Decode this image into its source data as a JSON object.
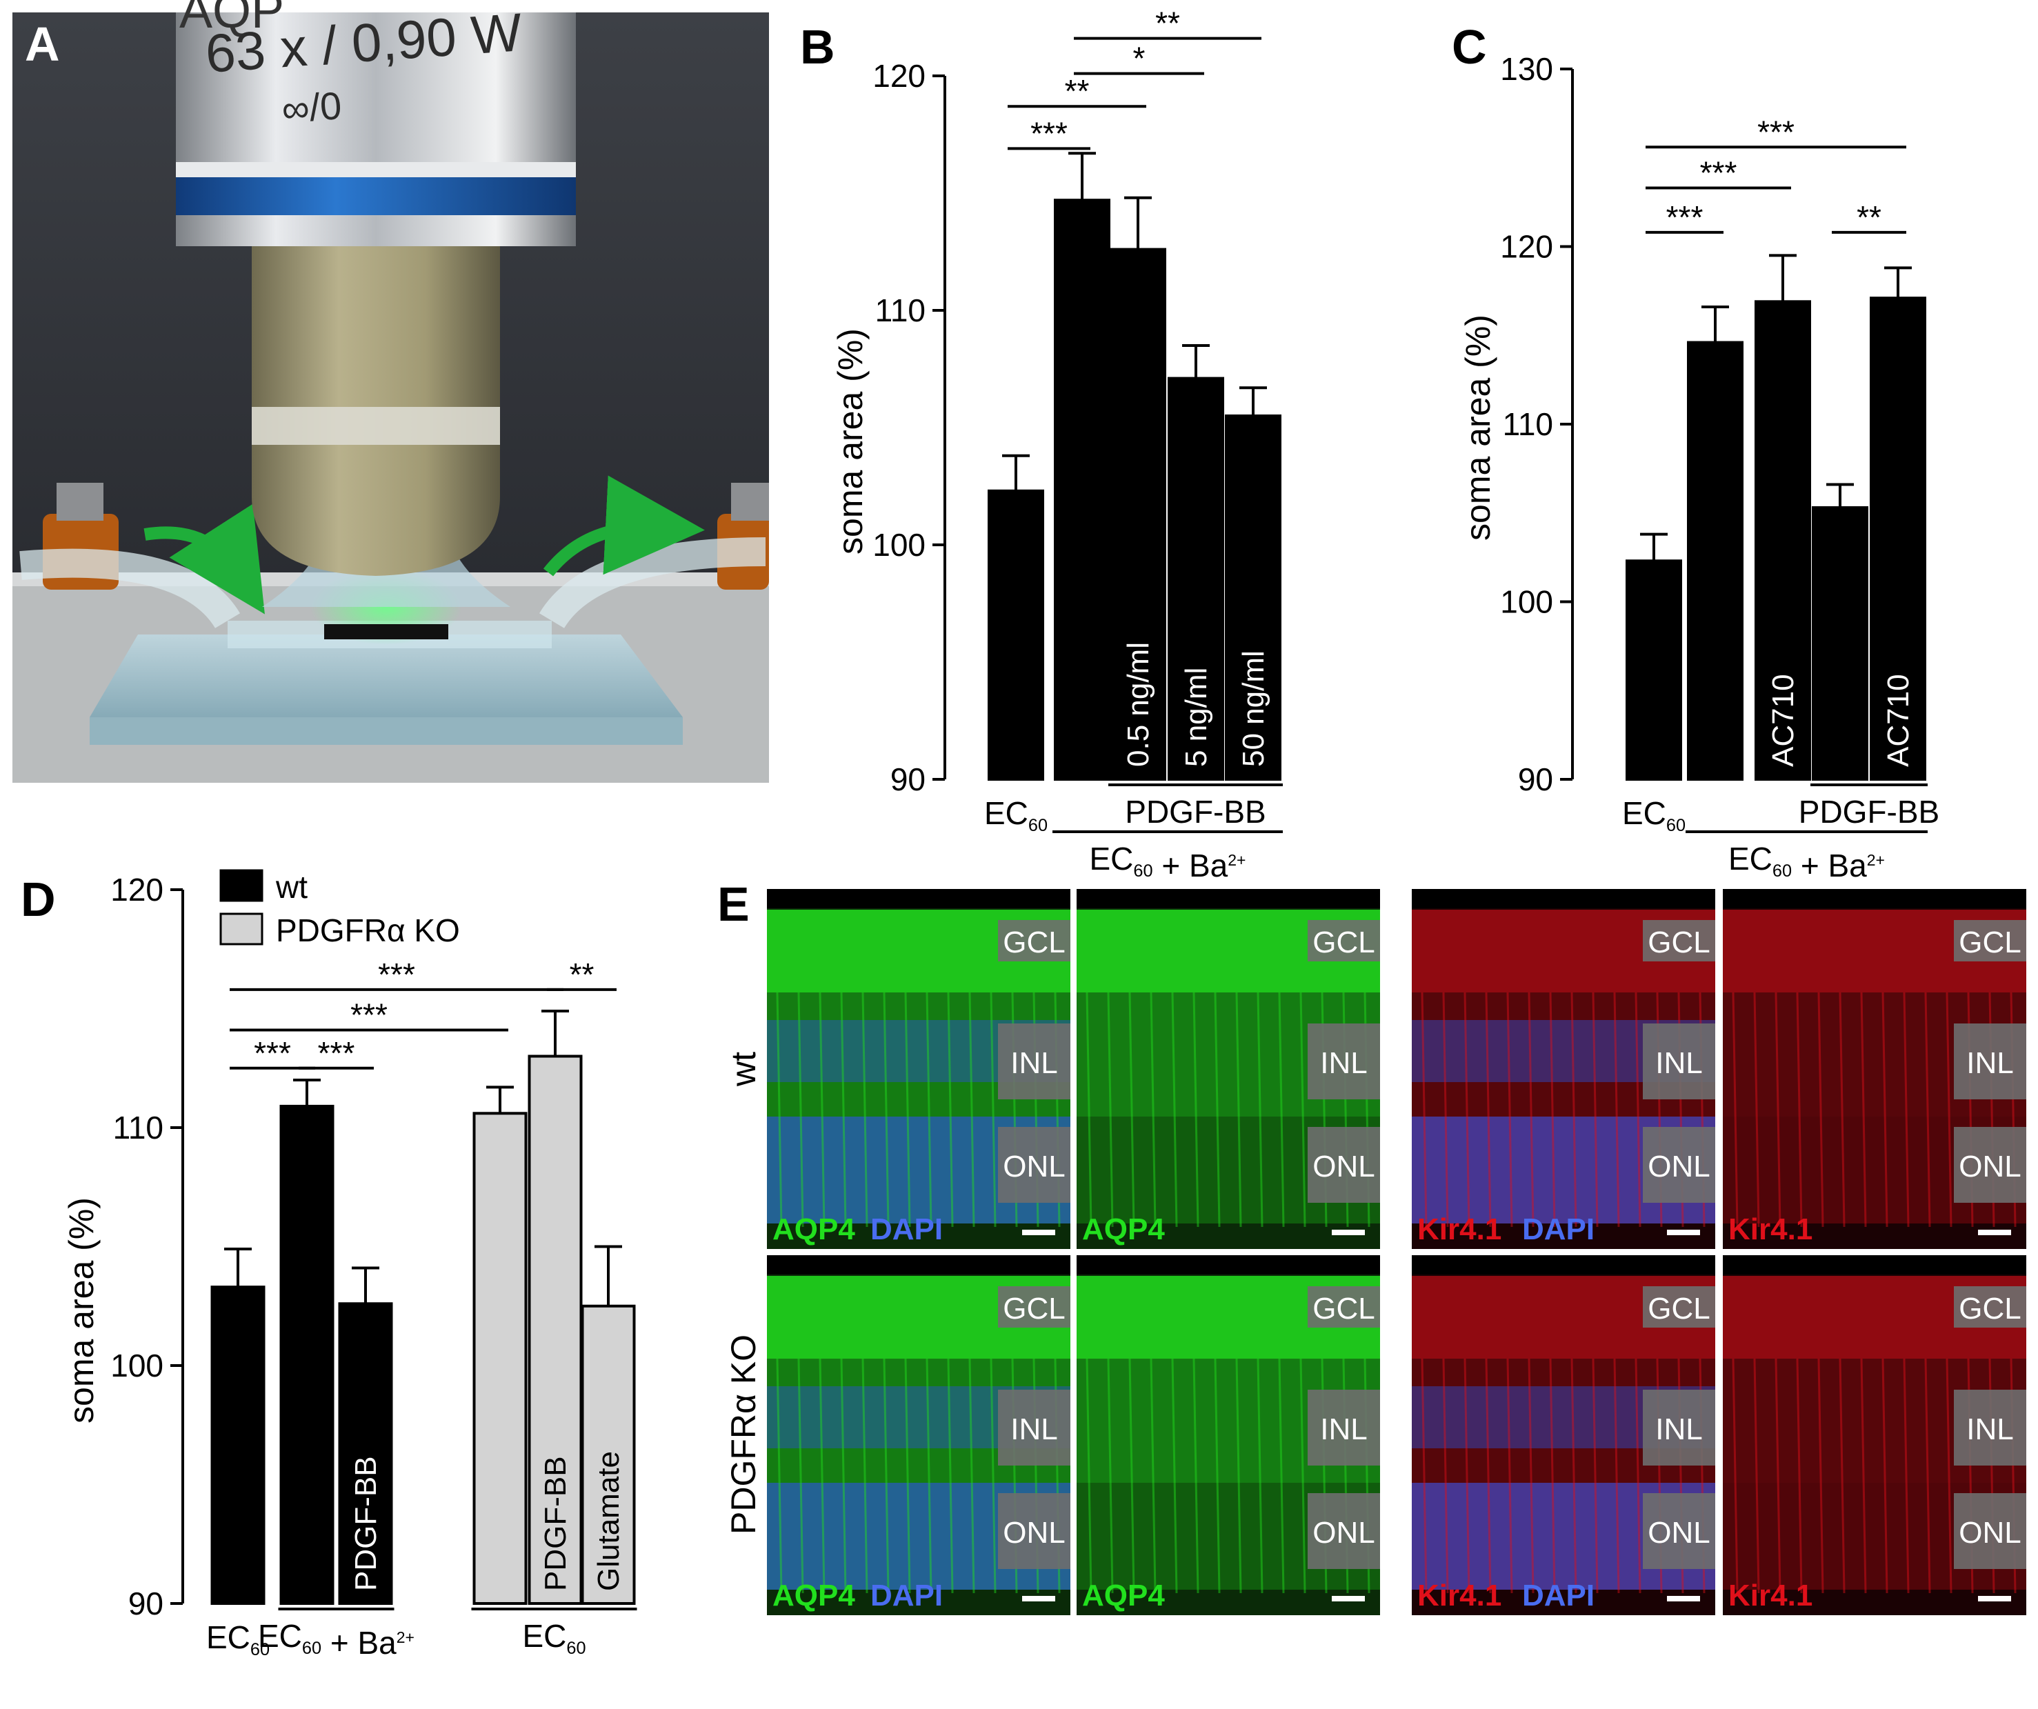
{
  "panels": {
    "A": {
      "letter": "A",
      "objective_line1": "63 x / 0,90 W",
      "objective_line2": "∞/0",
      "objective_top": "AQP",
      "colors": {
        "bg": "#2f3136",
        "metal": "#c9ccd0",
        "ring": "#1f64b5",
        "body": "#a39c76",
        "water": "#9fc6d6",
        "arrow": "#1fae3a",
        "clamp": "#b45a12"
      }
    },
    "B": {
      "letter": "B",
      "chart_data": {
        "type": "bar",
        "ylabel": "soma area (%)",
        "ylim": [
          90,
          120
        ],
        "yticks": [
          90,
          100,
          110,
          120
        ],
        "categories": [
          "EC60",
          "EC60 + Ba2+",
          "0.5 ng/ml",
          "5 ng/ml",
          "50 ng/ml"
        ],
        "values": [
          102.3,
          114.7,
          112.6,
          107.1,
          105.5
        ],
        "errors": [
          1.5,
          2.0,
          2.2,
          1.4,
          1.2
        ],
        "colors": [
          "#000000",
          "#000000",
          "#000000",
          "#000000",
          "#000000"
        ],
        "bar_labels": [
          "",
          "",
          "0.5 ng/ml",
          "5 ng/ml",
          "50 ng/ml"
        ],
        "significance": [
          {
            "from": 0,
            "to": 1,
            "label": "***",
            "y": 116.9
          },
          {
            "from": 0,
            "to": 2,
            "label": "**",
            "y": 118.7
          },
          {
            "from": 1,
            "to": 3,
            "label": "*",
            "y": 120.1
          },
          {
            "from": 1,
            "to": 4,
            "label": "**",
            "y": 121.6
          }
        ],
        "groups": [
          {
            "label": "PDGF-BB",
            "from": 2,
            "to": 4,
            "level": 1
          },
          {
            "label": "EC60 + Ba2+",
            "from": 1,
            "to": 4,
            "level": 2
          }
        ],
        "xticklabels": [
          {
            "index": 0,
            "label": "EC60"
          }
        ]
      }
    },
    "C": {
      "letter": "C",
      "chart_data": {
        "type": "bar",
        "ylabel": "soma area (%)",
        "ylim": [
          90,
          130
        ],
        "yticks": [
          90,
          100,
          110,
          120,
          130
        ],
        "categories": [
          "EC60",
          "EC60 + Ba2+",
          "AC710",
          "PDGF-BB",
          "PDGF-BB + AC710"
        ],
        "values": [
          102.3,
          114.6,
          116.9,
          105.3,
          117.1
        ],
        "errors": [
          1.5,
          2.0,
          2.6,
          1.3,
          1.7
        ],
        "colors": [
          "#000000",
          "#000000",
          "#000000",
          "#000000",
          "#000000"
        ],
        "bar_labels": [
          "",
          "",
          "AC710",
          "",
          "AC710"
        ],
        "significance": [
          {
            "from": 0,
            "to": 1,
            "label": "***",
            "y": 120.8
          },
          {
            "from": 3,
            "to": 4,
            "label": "**",
            "y": 120.8
          },
          {
            "from": 0,
            "to": 2,
            "label": "***",
            "y": 123.3
          },
          {
            "from": 0,
            "to": 4,
            "label": "***",
            "y": 125.6
          }
        ],
        "groups": [
          {
            "label": "PDGF-BB",
            "from": 3,
            "to": 4,
            "level": 1
          },
          {
            "label": "EC60 + Ba2+",
            "from": 1,
            "to": 4,
            "level": 2
          }
        ],
        "xticklabels": [
          {
            "index": 0,
            "label": "EC60"
          }
        ]
      }
    },
    "D": {
      "letter": "D",
      "chart_data": {
        "type": "bar",
        "ylabel": "soma area (%)",
        "ylim": [
          90,
          120
        ],
        "yticks": [
          90,
          100,
          110,
          120
        ],
        "legend": [
          {
            "label": "wt",
            "color": "#000000"
          },
          {
            "label": "PDGFRα KO",
            "color": "#d3d3d3"
          }
        ],
        "categories": [
          "EC60 (wt)",
          "EC60 + Ba2+ (wt)",
          "PDGF-BB (wt)",
          "EC60 (KO)",
          "PDGF-BB (KO)",
          "Glutamate (KO)"
        ],
        "values": [
          103.3,
          110.9,
          102.6,
          110.6,
          113.0,
          102.5
        ],
        "errors": [
          1.6,
          1.1,
          1.5,
          1.1,
          1.9,
          2.5
        ],
        "colors": [
          "#000000",
          "#000000",
          "#000000",
          "#d3d3d3",
          "#d3d3d3",
          "#d3d3d3"
        ],
        "bar_labels": [
          "",
          "",
          "PDGF-BB",
          "",
          "PDGF-BB",
          "Glutamate"
        ],
        "significance": [
          {
            "from": 0,
            "to": 1,
            "label": "***",
            "y": 112.5
          },
          {
            "from": 1,
            "to": 2,
            "label": "***",
            "y": 112.5
          },
          {
            "from": 0,
            "to": 3,
            "label": "***",
            "y": 114.1
          },
          {
            "from": 0,
            "to": 4,
            "label": "***",
            "y": 115.8
          },
          {
            "from": 4,
            "to": 5,
            "label": "**",
            "y": 115.8
          }
        ],
        "groups": [
          {
            "label": "EC60 + Ba2+",
            "from": 1,
            "to": 2,
            "level": 1
          },
          {
            "label": "EC60",
            "from": 3,
            "to": 5,
            "level": 1
          }
        ],
        "xticklabels": [
          {
            "index": 0,
            "label": "EC60"
          }
        ]
      }
    },
    "E": {
      "letter": "E",
      "row_labels": [
        "wt",
        "PDGFRα KO"
      ],
      "layers": [
        "GCL",
        "INL",
        "ONL"
      ],
      "stain_aqp4_dapi": [
        "AQP4",
        "DAPI"
      ],
      "stain_aqp4": "AQP4",
      "stain_kir_dapi": [
        "Kir4.1",
        "DAPI"
      ],
      "stain_kir": "Kir4.1",
      "colors": {
        "green": "#22e01e",
        "blue": "#2a4fd8",
        "red": "#e0101a",
        "dapi_text": "#4a6df0",
        "layer_box": "#6e6e6e"
      }
    }
  }
}
